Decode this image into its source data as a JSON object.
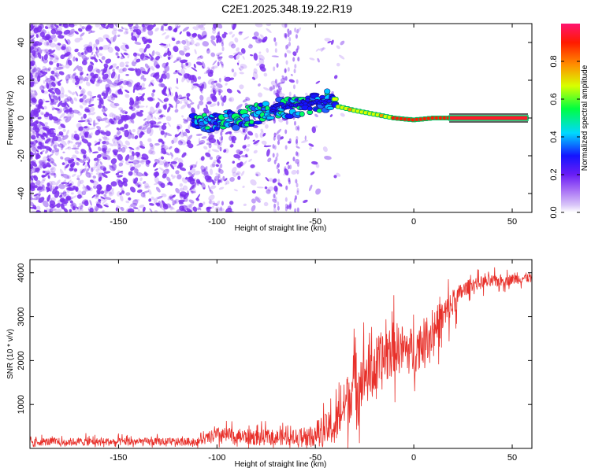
{
  "figure_title": "C2E1.2025.348.19.22.R19",
  "colors": {
    "noise_purple": "#7b2ff0",
    "snr_line": "#e8302a",
    "axis": "#000000",
    "background": "#ffffff"
  },
  "chart_data": [
    {
      "type": "heatmap",
      "name": "spectrogram",
      "xlabel": "Height of straight line (km)",
      "ylabel": "Frequency (Hz)",
      "xlim": [
        -195,
        60
      ],
      "ylim": [
        -50,
        50
      ],
      "xticks": [
        -150,
        -100,
        -50,
        0,
        50
      ],
      "yticks": [
        -40,
        -20,
        0,
        20,
        40
      ],
      "colorbar": {
        "label": "Normalized spectral amplitude",
        "range": [
          0,
          1
        ],
        "ticks": [
          "0.0",
          "0.2",
          "0.4",
          "0.6",
          "0.8"
        ],
        "colormap": [
          "#c6a8f5",
          "#7a1df5",
          "#1414ff",
          "#00e0ff",
          "#00ff40",
          "#e0ff00",
          "#ff8000",
          "#ff1400",
          "#ff1470"
        ]
      },
      "ridge": {
        "description": "dominant frequency track",
        "x": [
          -110,
          -100,
          -90,
          -80,
          -70,
          -60,
          -55,
          -50,
          -45,
          -40,
          -38,
          -30,
          -20,
          -10,
          0,
          10,
          20,
          30,
          40,
          50,
          58
        ],
        "y": [
          -3,
          -2,
          -1,
          2,
          5,
          6,
          7,
          8,
          9,
          10,
          6,
          4,
          2,
          0,
          -1,
          0,
          0,
          0,
          0,
          0,
          0
        ]
      }
    },
    {
      "type": "line",
      "name": "snr",
      "xlabel": "Height of straight line (km)",
      "ylabel": "SNR (10 * v/v)",
      "xlim": [
        -195,
        60
      ],
      "ylim": [
        0,
        4300
      ],
      "xticks": [
        -150,
        -100,
        -50,
        0,
        50
      ],
      "yticks": [
        1000,
        2000,
        3000,
        4000
      ],
      "envelope": {
        "x": [
          -195,
          -150,
          -110,
          -100,
          -80,
          -60,
          -50,
          -40,
          -35,
          -30,
          -20,
          -10,
          0,
          10,
          20,
          25,
          30,
          40,
          50,
          60
        ],
        "mean": [
          150,
          150,
          150,
          300,
          250,
          250,
          350,
          500,
          1000,
          1500,
          1800,
          2300,
          2200,
          2700,
          3300,
          3600,
          3750,
          3800,
          3850,
          3900
        ],
        "spread": [
          150,
          150,
          150,
          300,
          300,
          300,
          500,
          700,
          900,
          1100,
          1200,
          1000,
          900,
          800,
          600,
          300,
          250,
          250,
          200,
          200
        ]
      }
    }
  ]
}
